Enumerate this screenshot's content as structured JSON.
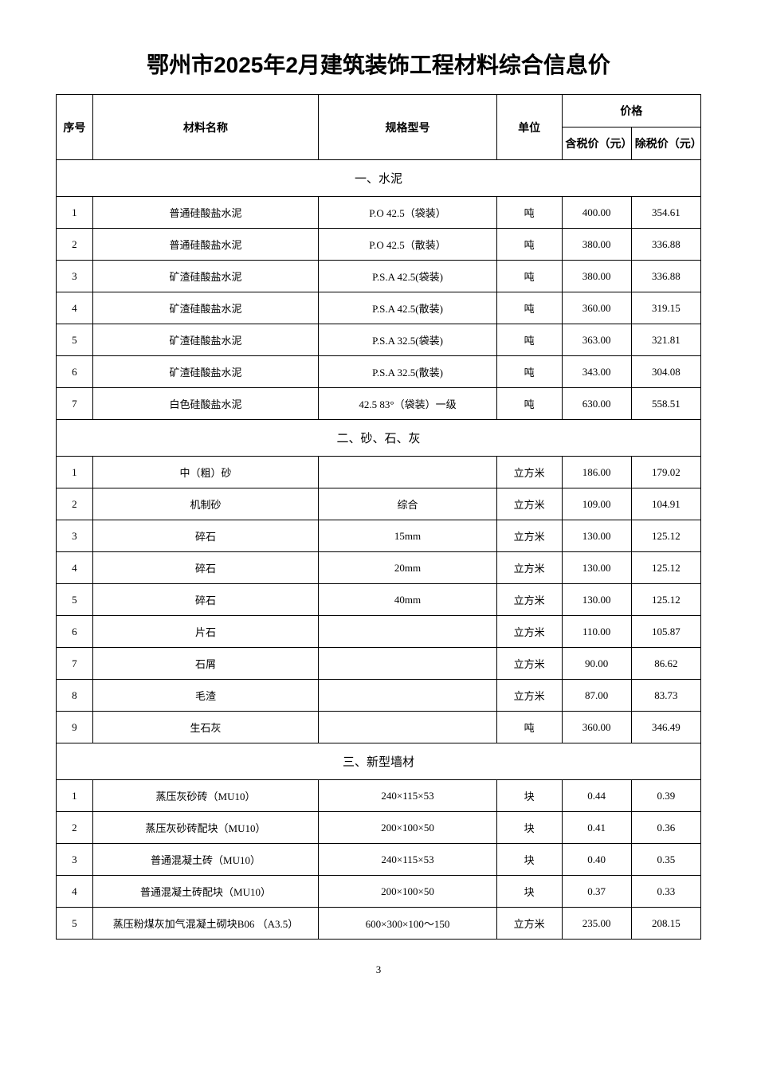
{
  "title": "鄂州市2025年2月建筑装饰工程材料综合信息价",
  "headers": {
    "seq": "序号",
    "name": "材料名称",
    "spec": "规格型号",
    "unit": "单位",
    "price_group": "价格",
    "price_tax": "含税价（元）",
    "price_notax": "除税价（元）"
  },
  "sections": [
    {
      "title": "一、水泥",
      "rows": [
        {
          "seq": "1",
          "name": "普通硅酸盐水泥",
          "spec": "P.O 42.5（袋装）",
          "unit": "吨",
          "tax": "400.00",
          "notax": "354.61"
        },
        {
          "seq": "2",
          "name": "普通硅酸盐水泥",
          "spec": "P.O 42.5（散装）",
          "unit": "吨",
          "tax": "380.00",
          "notax": "336.88"
        },
        {
          "seq": "3",
          "name": "矿渣硅酸盐水泥",
          "spec": "P.S.A 42.5(袋装)",
          "unit": "吨",
          "tax": "380.00",
          "notax": "336.88"
        },
        {
          "seq": "4",
          "name": "矿渣硅酸盐水泥",
          "spec": "P.S.A 42.5(散装)",
          "unit": "吨",
          "tax": "360.00",
          "notax": "319.15"
        },
        {
          "seq": "5",
          "name": "矿渣硅酸盐水泥",
          "spec": "P.S.A 32.5(袋装)",
          "unit": "吨",
          "tax": "363.00",
          "notax": "321.81"
        },
        {
          "seq": "6",
          "name": "矿渣硅酸盐水泥",
          "spec": "P.S.A 32.5(散装)",
          "unit": "吨",
          "tax": "343.00",
          "notax": "304.08"
        },
        {
          "seq": "7",
          "name": "白色硅酸盐水泥",
          "spec": "42.5 83°（袋装）一级",
          "unit": "吨",
          "tax": "630.00",
          "notax": "558.51"
        }
      ]
    },
    {
      "title": "二、砂、石、灰",
      "rows": [
        {
          "seq": "1",
          "name": "中（粗）砂",
          "spec": "",
          "unit": "立方米",
          "tax": "186.00",
          "notax": "179.02"
        },
        {
          "seq": "2",
          "name": "机制砂",
          "spec": "综合",
          "unit": "立方米",
          "tax": "109.00",
          "notax": "104.91"
        },
        {
          "seq": "3",
          "name": "碎石",
          "spec": "15mm",
          "unit": "立方米",
          "tax": "130.00",
          "notax": "125.12"
        },
        {
          "seq": "4",
          "name": "碎石",
          "spec": "20mm",
          "unit": "立方米",
          "tax": "130.00",
          "notax": "125.12"
        },
        {
          "seq": "5",
          "name": "碎石",
          "spec": "40mm",
          "unit": "立方米",
          "tax": "130.00",
          "notax": "125.12"
        },
        {
          "seq": "6",
          "name": "片石",
          "spec": "",
          "unit": "立方米",
          "tax": "110.00",
          "notax": "105.87"
        },
        {
          "seq": "7",
          "name": "石屑",
          "spec": "",
          "unit": "立方米",
          "tax": "90.00",
          "notax": "86.62"
        },
        {
          "seq": "8",
          "name": "毛渣",
          "spec": "",
          "unit": "立方米",
          "tax": "87.00",
          "notax": "83.73"
        },
        {
          "seq": "9",
          "name": "生石灰",
          "spec": "",
          "unit": "吨",
          "tax": "360.00",
          "notax": "346.49"
        }
      ]
    },
    {
      "title": "三、新型墙材",
      "rows": [
        {
          "seq": "1",
          "name": "蒸压灰砂砖（MU10）",
          "spec": "240×115×53",
          "unit": "块",
          "tax": "0.44",
          "notax": "0.39"
        },
        {
          "seq": "2",
          "name": "蒸压灰砂砖配块（MU10）",
          "spec": "200×100×50",
          "unit": "块",
          "tax": "0.41",
          "notax": "0.36"
        },
        {
          "seq": "3",
          "name": "普通混凝土砖（MU10）",
          "spec": "240×115×53",
          "unit": "块",
          "tax": "0.40",
          "notax": "0.35"
        },
        {
          "seq": "4",
          "name": "普通混凝土砖配块（MU10）",
          "spec": "200×100×50",
          "unit": "块",
          "tax": "0.37",
          "notax": "0.33"
        },
        {
          "seq": "5",
          "name": "蒸压粉煤灰加气混凝土砌块B06 （A3.5）",
          "spec": "600×300×100～150",
          "unit": "立方米",
          "tax": "235.00",
          "notax": "208.15"
        }
      ]
    }
  ],
  "page_number": "3",
  "style": {
    "background_color": "#ffffff",
    "text_color": "#000000",
    "border_color": "#000000",
    "title_fontsize": 28,
    "header_fontsize": 14,
    "cell_fontsize": 13,
    "section_fontsize": 15
  }
}
